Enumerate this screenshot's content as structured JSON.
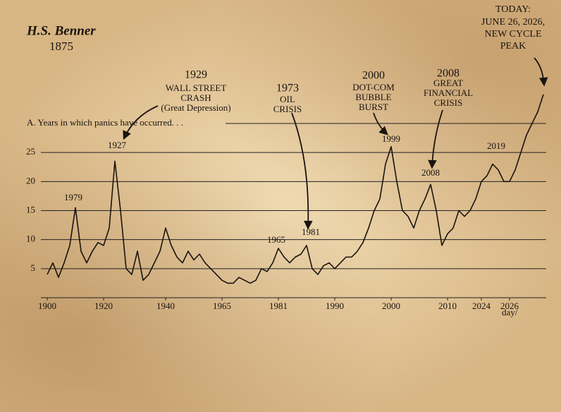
{
  "author": {
    "name": "H.S. Benner",
    "year": "1875"
  },
  "chart_data": {
    "type": "line",
    "axis_note": "A.  Years in which panics have occurred. . .",
    "x_unit": "day/",
    "categories": [
      "1900",
      null,
      null,
      null,
      null,
      null,
      null,
      null,
      null,
      null,
      "1920",
      null,
      null,
      null,
      null,
      null,
      null,
      null,
      null,
      null,
      null,
      "1940",
      null,
      null,
      null,
      null,
      null,
      null,
      null,
      null,
      null,
      "1965",
      null,
      null,
      null,
      null,
      null,
      null,
      null,
      null,
      null,
      "1981",
      null,
      null,
      null,
      null,
      null,
      null,
      null,
      null,
      null,
      "1990",
      null,
      null,
      null,
      null,
      null,
      null,
      null,
      null,
      null,
      "2000",
      null,
      null,
      null,
      null,
      null,
      null,
      null,
      null,
      null,
      "2010",
      null,
      null,
      null,
      null,
      null,
      "2024",
      null,
      null,
      null,
      null,
      "2026",
      null,
      null,
      null,
      null,
      null,
      null
    ],
    "values": [
      4,
      6,
      3.5,
      6,
      9,
      15.5,
      8,
      6,
      8,
      9.5,
      9,
      12,
      23.5,
      15,
      5,
      4,
      8,
      3,
      4,
      6,
      8,
      12,
      9,
      7,
      6,
      8,
      6.5,
      7.5,
      6,
      5,
      4,
      3,
      2.5,
      2.5,
      3.5,
      3,
      2.5,
      3,
      5,
      4.5,
      6,
      8.5,
      7,
      6,
      7,
      7.5,
      9,
      5,
      4,
      5.5,
      6,
      5,
      6,
      7,
      7,
      8,
      9.5,
      12,
      15,
      17,
      23,
      26,
      20,
      15,
      14,
      12,
      15,
      17,
      19.5,
      15,
      9,
      11,
      12,
      15,
      14,
      15,
      17,
      20,
      21,
      23,
      22,
      20,
      20,
      22,
      25,
      28,
      30,
      32,
      35
    ],
    "color": "#1a1410",
    "ylim": [
      0,
      30
    ],
    "yticks": [
      5,
      10,
      15,
      20,
      25
    ],
    "grid": true,
    "peak_labels": [
      "1979",
      "1927",
      "1965",
      "1981",
      "1999",
      "2008",
      "2019"
    ],
    "annotations": [
      [
        "1929",
        "WALL STREET",
        "CRASH",
        "(Great Depression)"
      ],
      [
        "1973",
        "OIL",
        "CRISIS"
      ],
      [
        "2000",
        "DOT-COM",
        "BUBBLE",
        "BURST"
      ],
      [
        "2008",
        "GREAT",
        "FINANCIAL",
        "CRISIS"
      ],
      [
        "TODAY:",
        "JUNE 26, 2026,",
        "NEW CYCLE",
        "PEAK"
      ]
    ]
  }
}
